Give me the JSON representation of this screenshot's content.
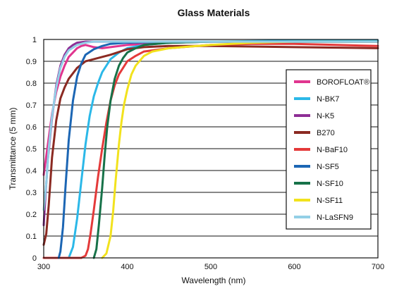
{
  "chart_data": {
    "type": "line",
    "title": "Glass Materials",
    "xlabel": "Wavelength (nm)",
    "ylabel": "Transmittance (5 mm)",
    "xlim": [
      300,
      700
    ],
    "ylim": [
      0,
      1
    ],
    "x_ticks": [
      "300",
      "400",
      "500",
      "600",
      "700"
    ],
    "y_ticks": [
      "0",
      "0.1",
      "0.2",
      "0.3",
      "0.4",
      "0.5",
      "0.6",
      "0.7",
      "0.8",
      "0.9",
      "1"
    ],
    "grid": "horizontal",
    "legend_position": "right",
    "series": [
      {
        "name": "BOROFLOAT®",
        "color": "#e0358f",
        "x": [
          300,
          305,
          310,
          315,
          320,
          325,
          330,
          335,
          340,
          345,
          350,
          360,
          370,
          380,
          400,
          450,
          500,
          600,
          700
        ],
        "y": [
          0.38,
          0.52,
          0.66,
          0.76,
          0.83,
          0.88,
          0.92,
          0.94,
          0.96,
          0.97,
          0.975,
          0.965,
          0.96,
          0.965,
          0.975,
          0.985,
          0.99,
          0.99,
          0.99
        ]
      },
      {
        "name": "N-BK7",
        "color": "#2bb8e8",
        "x": [
          330,
          335,
          340,
          345,
          350,
          355,
          360,
          365,
          370,
          380,
          390,
          400,
          420,
          450,
          500,
          600,
          700
        ],
        "y": [
          0.0,
          0.05,
          0.18,
          0.35,
          0.52,
          0.65,
          0.74,
          0.8,
          0.85,
          0.91,
          0.94,
          0.96,
          0.975,
          0.985,
          0.99,
          0.995,
          0.995
        ]
      },
      {
        "name": "N-K5",
        "color": "#8e2e95",
        "x": [
          300,
          302,
          305,
          310,
          315,
          320,
          325,
          330,
          335,
          340,
          350,
          360,
          380,
          400,
          450,
          500,
          600,
          700
        ],
        "y": [
          0.15,
          0.28,
          0.45,
          0.64,
          0.79,
          0.88,
          0.93,
          0.96,
          0.975,
          0.985,
          0.99,
          0.99,
          0.99,
          0.99,
          0.99,
          0.99,
          0.99,
          0.99
        ]
      },
      {
        "name": "B270",
        "color": "#8b2a22",
        "x": [
          300,
          303,
          306,
          310,
          315,
          320,
          325,
          330,
          340,
          350,
          360,
          370,
          380,
          400,
          420,
          450,
          500,
          600,
          700
        ],
        "y": [
          0.06,
          0.11,
          0.24,
          0.46,
          0.63,
          0.73,
          0.78,
          0.82,
          0.87,
          0.9,
          0.91,
          0.92,
          0.93,
          0.955,
          0.965,
          0.97,
          0.97,
          0.965,
          0.96
        ]
      },
      {
        "name": "N-BaF10",
        "color": "#e43a3a",
        "x": [
          300,
          345,
          350,
          353,
          356,
          360,
          365,
          370,
          375,
          380,
          385,
          390,
          400,
          410,
          420,
          450,
          500,
          550,
          600,
          650,
          700
        ],
        "y": [
          0.0,
          0.0,
          0.01,
          0.04,
          0.11,
          0.22,
          0.37,
          0.5,
          0.62,
          0.72,
          0.79,
          0.84,
          0.9,
          0.925,
          0.945,
          0.96,
          0.975,
          0.98,
          0.98,
          0.975,
          0.97
        ]
      },
      {
        "name": "N-SF5",
        "color": "#1c66b4",
        "x": [
          318,
          320,
          323,
          326,
          330,
          335,
          340,
          345,
          350,
          360,
          370,
          380,
          400,
          450,
          500,
          600,
          700
        ],
        "y": [
          0.0,
          0.03,
          0.14,
          0.32,
          0.54,
          0.72,
          0.83,
          0.89,
          0.93,
          0.955,
          0.97,
          0.98,
          0.985,
          0.99,
          0.99,
          0.99,
          0.99
        ]
      },
      {
        "name": "N-SF10",
        "color": "#177249",
        "x": [
          360,
          363,
          366,
          370,
          373,
          376,
          380,
          385,
          390,
          395,
          400,
          410,
          420,
          450,
          500,
          600,
          700
        ],
        "y": [
          0.0,
          0.04,
          0.15,
          0.32,
          0.47,
          0.6,
          0.72,
          0.82,
          0.88,
          0.915,
          0.94,
          0.96,
          0.975,
          0.985,
          0.99,
          0.99,
          0.99
        ]
      },
      {
        "name": "N-SF11",
        "color": "#f2e21d",
        "x": [
          370,
          375,
          380,
          383,
          386,
          390,
          393,
          396,
          400,
          405,
          410,
          420,
          430,
          450,
          500,
          550,
          600,
          700
        ],
        "y": [
          0.0,
          0.02,
          0.1,
          0.21,
          0.35,
          0.52,
          0.62,
          0.7,
          0.77,
          0.84,
          0.88,
          0.925,
          0.945,
          0.96,
          0.975,
          0.985,
          0.99,
          0.99
        ]
      },
      {
        "name": "N-LaSFN9",
        "color": "#93cfe6",
        "x": [
          300,
          303,
          306,
          310,
          315,
          320,
          325,
          330,
          340,
          350,
          360,
          380,
          400,
          450,
          500,
          600,
          700
        ],
        "y": [
          0.22,
          0.34,
          0.5,
          0.65,
          0.78,
          0.87,
          0.92,
          0.95,
          0.975,
          0.985,
          0.99,
          0.99,
          0.99,
          0.99,
          0.99,
          0.99,
          0.99
        ]
      }
    ]
  }
}
